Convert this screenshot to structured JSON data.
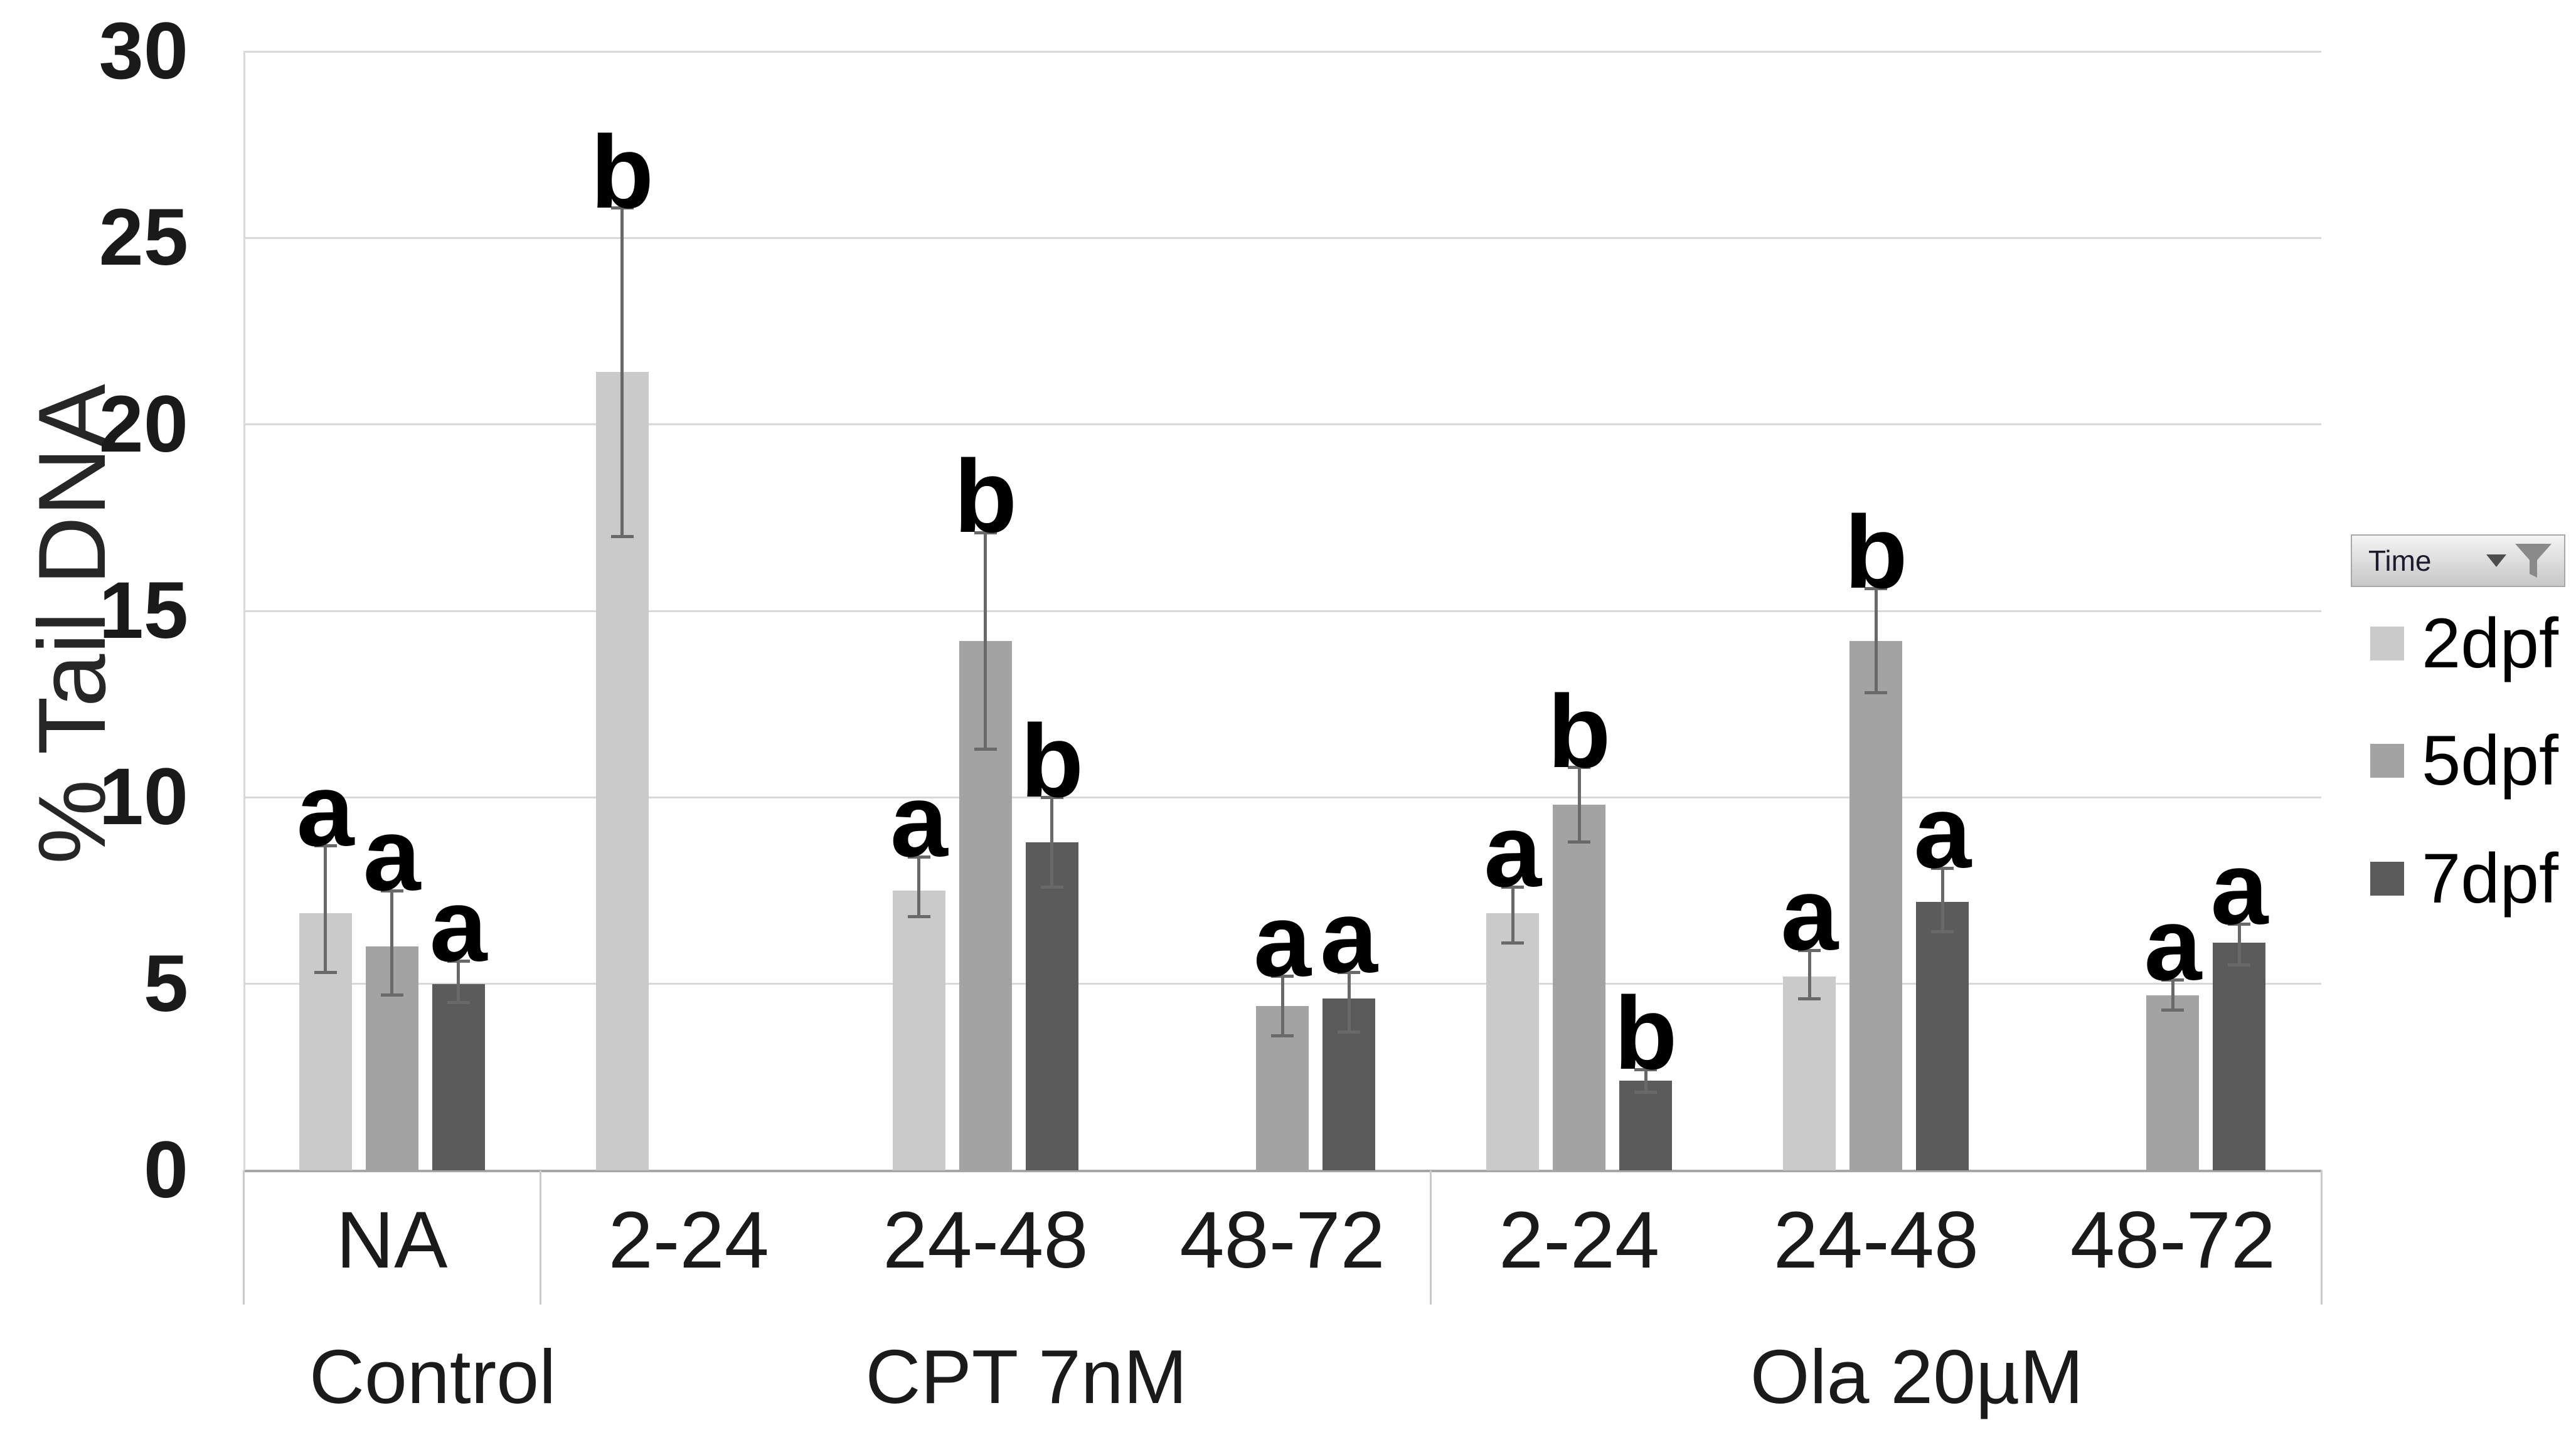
{
  "chart_data": {
    "type": "bar",
    "title": "",
    "ylabel": "% Tail DNA",
    "xlabel": "",
    "ylim": [
      0,
      30
    ],
    "yticks": [
      0,
      5,
      10,
      15,
      20,
      25,
      30
    ],
    "grid": true,
    "legend_position": "right",
    "legend_field_button": "Time",
    "series": [
      {
        "name": "2dpf",
        "color": "#cacaca"
      },
      {
        "name": "5dpf",
        "color": "#a3a3a3"
      },
      {
        "name": "7dpf",
        "color": "#5b5b5b"
      }
    ],
    "groups": [
      {
        "label": "Control",
        "categories": [
          {
            "label": "NA",
            "bars": {
              "2dpf": {
                "value": 6.9,
                "err_low": 5.3,
                "err_high": 8.7,
                "letter": "a"
              },
              "5dpf": {
                "value": 6.0,
                "err_low": 4.7,
                "err_high": 7.5,
                "letter": "a"
              },
              "7dpf": {
                "value": 5.0,
                "err_low": 4.5,
                "err_high": 5.6,
                "letter": "a"
              }
            }
          }
        ]
      },
      {
        "label": "CPT 7nM",
        "categories": [
          {
            "label": "2-24",
            "bars": {
              "2dpf": {
                "value": 21.4,
                "err_low": 17.0,
                "err_high": 25.8,
                "letter": "b"
              }
            }
          },
          {
            "label": "24-48",
            "bars": {
              "2dpf": {
                "value": 7.5,
                "err_low": 6.8,
                "err_high": 8.4,
                "letter": "a"
              },
              "5dpf": {
                "value": 14.2,
                "err_low": 11.3,
                "err_high": 17.1,
                "letter": "b"
              },
              "7dpf": {
                "value": 8.8,
                "err_low": 7.6,
                "err_high": 10.0,
                "letter": "b"
              }
            }
          },
          {
            "label": "48-72",
            "bars": {
              "5dpf": {
                "value": 4.4,
                "err_low": 3.6,
                "err_high": 5.2,
                "letter": "a"
              },
              "7dpf": {
                "value": 4.6,
                "err_low": 3.7,
                "err_high": 5.3,
                "letter": "a"
              }
            }
          }
        ]
      },
      {
        "label": "Ola 20µM",
        "categories": [
          {
            "label": "2-24",
            "bars": {
              "2dpf": {
                "value": 6.9,
                "err_low": 6.1,
                "err_high": 7.6,
                "letter": "a"
              },
              "5dpf": {
                "value": 9.8,
                "err_low": 8.8,
                "err_high": 10.8,
                "letter": "b"
              },
              "7dpf": {
                "value": 2.4,
                "err_low": 2.1,
                "err_high": 2.7,
                "letter": "b"
              }
            }
          },
          {
            "label": "24-48",
            "bars": {
              "2dpf": {
                "value": 5.2,
                "err_low": 4.6,
                "err_high": 5.9,
                "letter": "a"
              },
              "5dpf": {
                "value": 14.2,
                "err_low": 12.8,
                "err_high": 15.6,
                "letter": "b"
              },
              "7dpf": {
                "value": 7.2,
                "err_low": 6.4,
                "err_high": 8.1,
                "letter": "a"
              }
            }
          },
          {
            "label": "48-72",
            "bars": {
              "5dpf": {
                "value": 4.7,
                "err_low": 4.3,
                "err_high": 5.1,
                "letter": "a"
              },
              "7dpf": {
                "value": 6.1,
                "err_low": 5.5,
                "err_high": 6.6,
                "letter": "a"
              }
            }
          }
        ]
      }
    ]
  }
}
